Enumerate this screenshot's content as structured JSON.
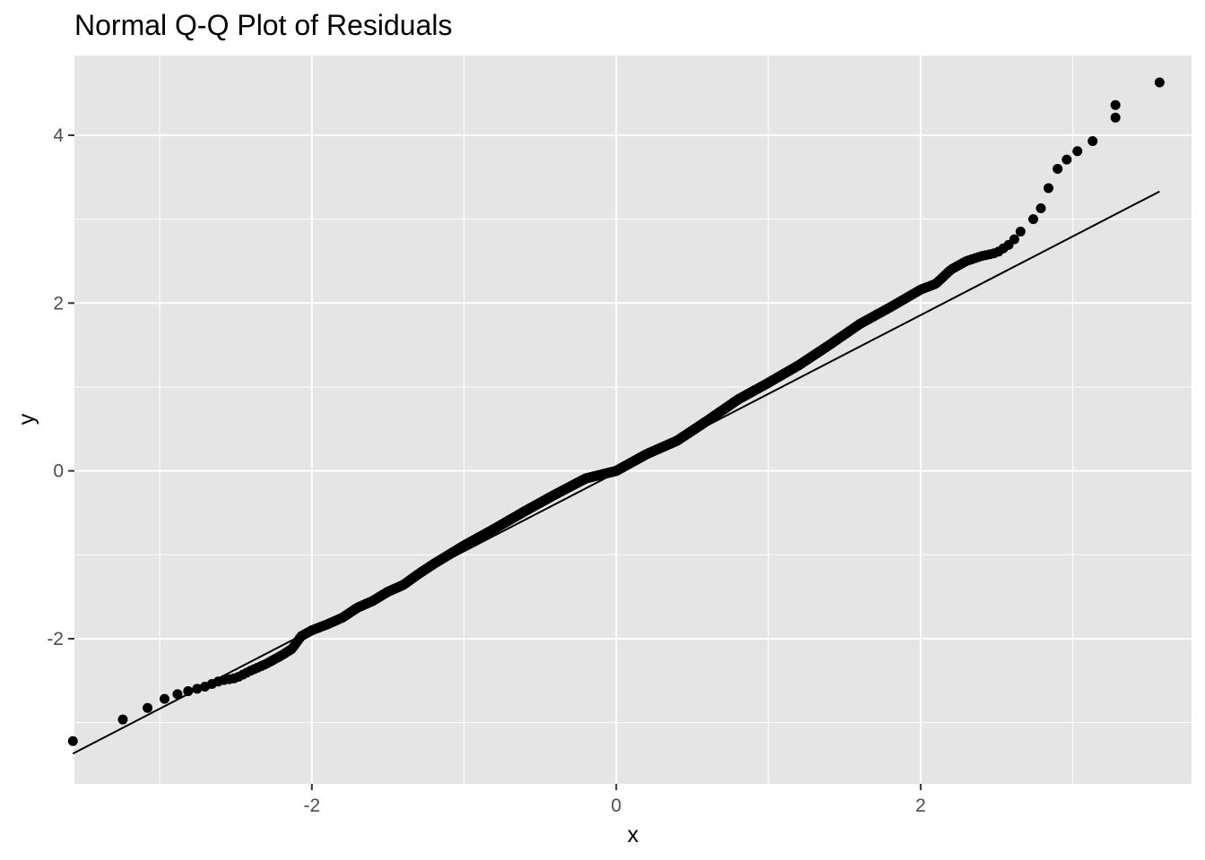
{
  "chart_data": {
    "type": "scatter",
    "title": "Normal Q-Q Plot of Residuals",
    "xlabel": "x",
    "ylabel": "y",
    "xlim": [
      -3.56,
      3.78
    ],
    "ylim": [
      -3.73,
      4.95
    ],
    "x_ticks": [
      -2,
      0,
      2
    ],
    "y_ticks": [
      -2,
      0,
      2,
      4
    ],
    "x_tick_labels": [
      "-2",
      "0",
      "2"
    ],
    "y_tick_labels": [
      "-2",
      "0",
      "2",
      "4"
    ],
    "grid": true,
    "legend": "none",
    "colors": {
      "panel": "#e5e5e5",
      "grid": "#ffffff",
      "point": "#000000",
      "line": "#000000",
      "tick": "#333333"
    },
    "reference_line": {
      "x": [
        -3.57,
        3.57
      ],
      "y": [
        -3.37,
        3.33
      ]
    },
    "qq_x_range": [
      -3.57,
      3.57
    ],
    "sample_count": 1500,
    "quantile_curve": {
      "x": [
        -3.57,
        -3.27,
        -3.12,
        -3.02,
        -2.94,
        -2.87,
        -2.8,
        -2.7,
        -2.6,
        -2.5,
        -2.4,
        -2.3,
        -2.2,
        -2.13,
        -2.07,
        -2.0,
        -1.9,
        -1.8,
        -1.7,
        -1.6,
        -1.5,
        -1.4,
        -1.3,
        -1.2,
        -1.0,
        -0.8,
        -0.6,
        -0.4,
        -0.2,
        0.0,
        0.2,
        0.4,
        0.6,
        0.8,
        1.0,
        1.2,
        1.4,
        1.6,
        1.8,
        2.0,
        2.1,
        2.2,
        2.3,
        2.4,
        2.5,
        2.6,
        2.65,
        2.7
      ],
      "y": [
        -3.22,
        -2.98,
        -2.89,
        -2.73,
        -2.71,
        -2.65,
        -2.62,
        -2.57,
        -2.5,
        -2.47,
        -2.38,
        -2.3,
        -2.2,
        -2.12,
        -1.97,
        -1.9,
        -1.83,
        -1.75,
        -1.63,
        -1.55,
        -1.44,
        -1.36,
        -1.23,
        -1.11,
        -0.89,
        -0.69,
        -0.48,
        -0.28,
        -0.09,
        0.0,
        0.2,
        0.36,
        0.6,
        0.85,
        1.05,
        1.26,
        1.5,
        1.75,
        1.95,
        2.16,
        2.23,
        2.4,
        2.5,
        2.56,
        2.6,
        2.72,
        2.85,
        2.87
      ]
    },
    "tail_points": {
      "x": [
        2.74,
        2.79,
        2.84,
        2.9,
        2.96,
        3.03,
        3.13,
        3.28,
        3.57
      ],
      "y": [
        3.0,
        3.13,
        3.37,
        3.6,
        3.71,
        3.81,
        3.93,
        4.21,
        4.63
      ]
    },
    "extra_tail_points": {
      "x": [
        3.28
      ],
      "y": [
        4.36
      ]
    }
  }
}
